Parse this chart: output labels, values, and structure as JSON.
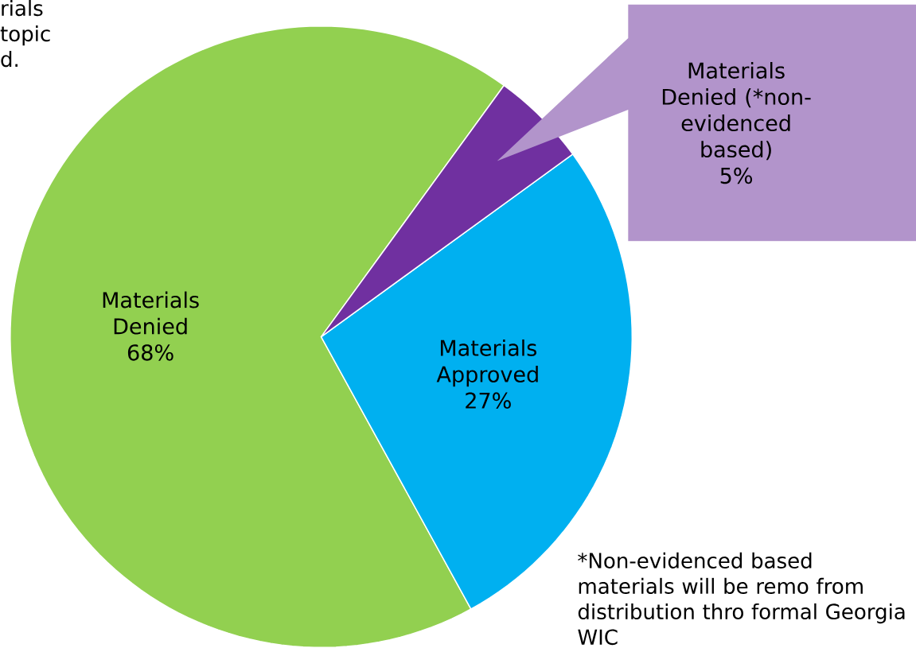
{
  "chart_data": {
    "type": "pie",
    "categories": [
      "Materials Denied",
      "Materials Approved",
      "Materials Denied (*non-evidenced based)"
    ],
    "values": [
      68,
      27,
      5
    ],
    "colors": [
      "#92d050",
      "#00b0f0",
      "#7030a0"
    ],
    "value_labels": [
      "68%",
      "27%",
      "5%"
    ],
    "annotations": [
      "rials topic d.",
      "*Non-evidenced based materials will be remo from distribution thro formal Georgia WIC"
    ]
  }
}
